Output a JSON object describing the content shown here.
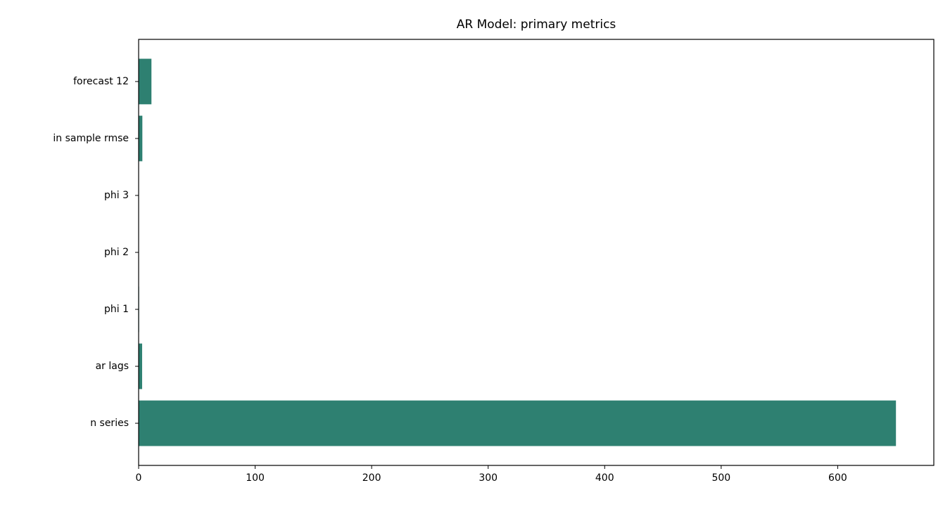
{
  "chart_data": {
    "type": "barh",
    "title": "AR Model: primary metrics",
    "categories": [
      "n series",
      "ar lags",
      "phi 1",
      "phi 2",
      "phi 3",
      "in sample rmse",
      "forecast 12"
    ],
    "values": [
      650,
      3,
      0.4,
      0.2,
      0.1,
      3.2,
      11
    ],
    "color": "#2e8071",
    "xlim": [
      0,
      682.5
    ],
    "xticks": [
      0,
      100,
      200,
      300,
      400,
      500,
      600
    ],
    "grid": false
  }
}
